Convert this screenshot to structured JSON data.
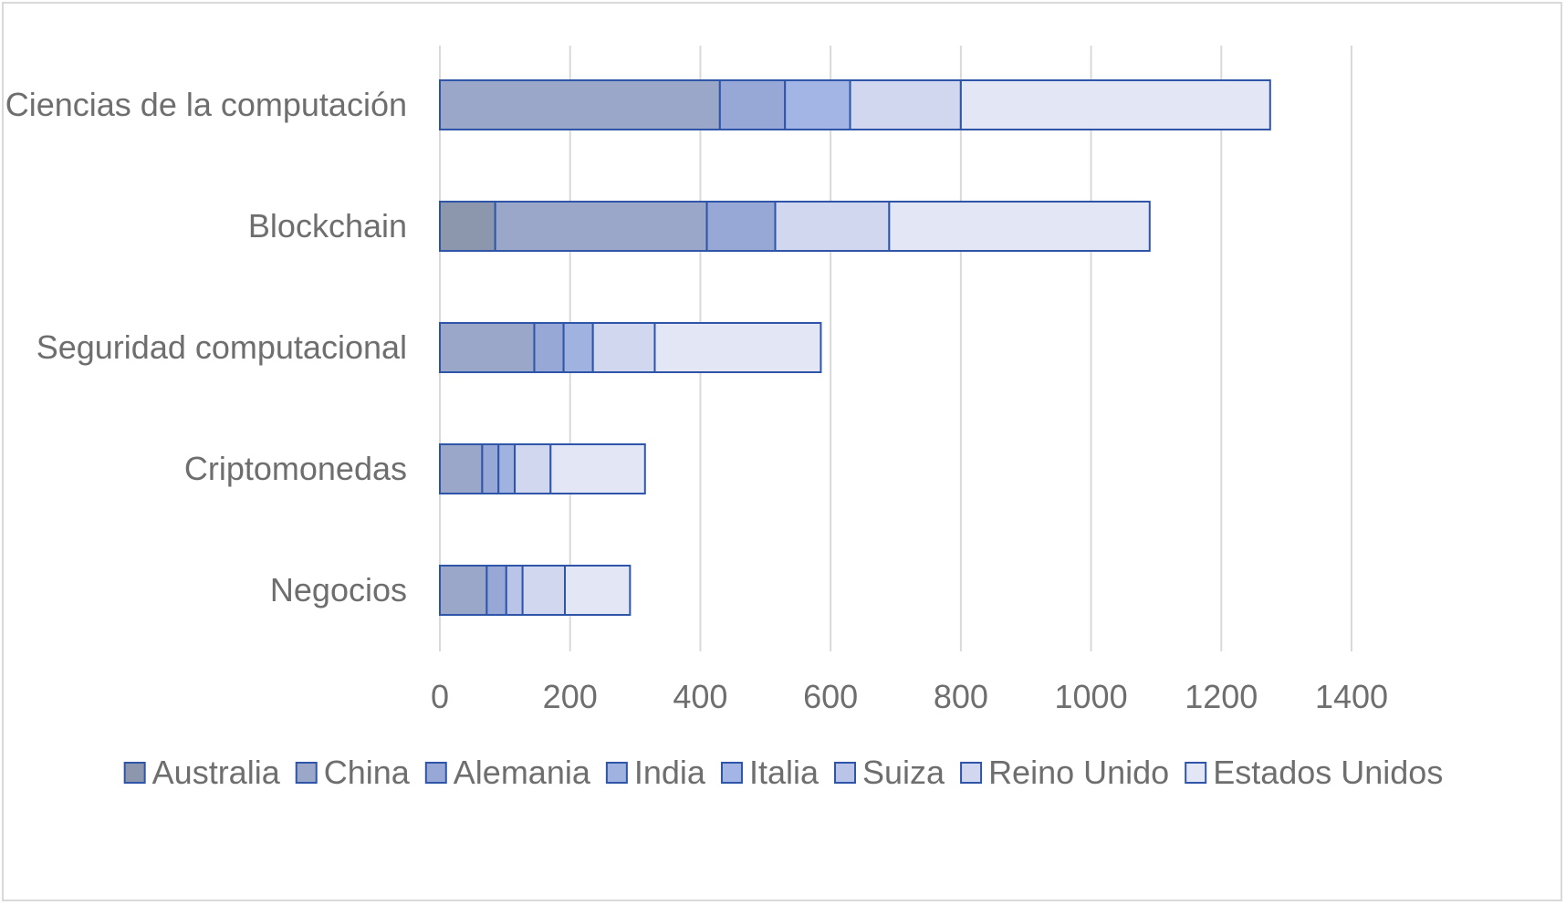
{
  "chart_data": {
    "type": "bar",
    "orientation": "horizontal",
    "stacked": true,
    "categories": [
      "Ciencias de la computación",
      "Blockchain",
      "Seguridad computacional",
      "Criptomonedas",
      "Negocios"
    ],
    "series": [
      {
        "name": "Australia",
        "values": [
          0,
          85,
          0,
          0,
          0
        ],
        "color": "#8c96ad"
      },
      {
        "name": "China",
        "values": [
          430,
          325,
          145,
          65,
          72
        ],
        "color": "#9aa7c9"
      },
      {
        "name": "Alemania",
        "values": [
          100,
          105,
          45,
          25,
          30
        ],
        "color": "#97a8d6"
      },
      {
        "name": "India",
        "values": [
          0,
          0,
          45,
          25,
          0
        ],
        "color": "#a0b2e0"
      },
      {
        "name": "Italia",
        "values": [
          100,
          0,
          0,
          0,
          0
        ],
        "color": "#a3b5e4"
      },
      {
        "name": "Suiza",
        "values": [
          0,
          0,
          0,
          0,
          25
        ],
        "color": "#b9c4e8"
      },
      {
        "name": "Reino Unido",
        "values": [
          170,
          175,
          95,
          55,
          65
        ],
        "color": "#d1d7ee"
      },
      {
        "name": "Estados Unidos",
        "values": [
          475,
          400,
          255,
          145,
          100
        ],
        "color": "#e3e7f5"
      }
    ],
    "xlim": [
      0,
      1400
    ],
    "xticks": [
      "0",
      "200",
      "400",
      "600",
      "800",
      "1000",
      "1200",
      "1400"
    ],
    "grid": true,
    "legend_position": "bottom",
    "title": "",
    "xlabel": "",
    "ylabel": ""
  }
}
